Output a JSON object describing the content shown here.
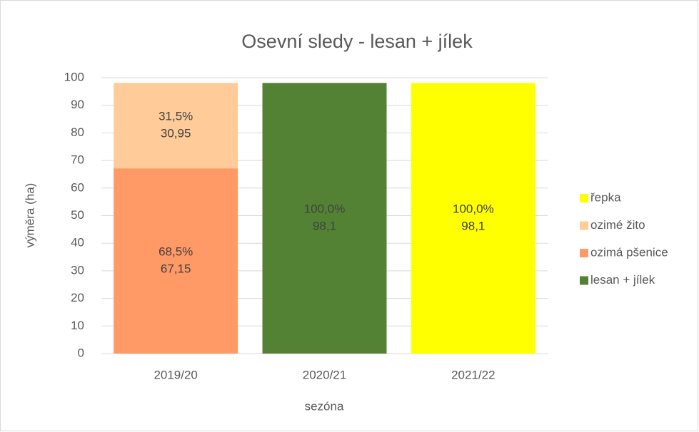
{
  "chart_data": {
    "type": "stacked_bar",
    "title": "Osevní sledy - lesan + jílek",
    "x_label": "sezóna",
    "y_label": "výměra (ha)",
    "categories": [
      "2019/20",
      "2020/21",
      "2021/22"
    ],
    "series": [
      {
        "name": "lesan + jílek",
        "color": "#548235",
        "values": [
          null,
          98.1,
          null
        ],
        "value_labels": [
          null,
          "98,1",
          null
        ],
        "share_labels": [
          null,
          "100,0%",
          null
        ]
      },
      {
        "name": "ozimá pšenice",
        "color": "#ff9966",
        "values": [
          67.15,
          null,
          null
        ],
        "value_labels": [
          "67,15",
          null,
          null
        ],
        "share_labels": [
          "68,5%",
          null,
          null
        ]
      },
      {
        "name": "ozimé žito",
        "color": "#ffcc99",
        "values": [
          30.95,
          null,
          null
        ],
        "value_labels": [
          "30,95",
          null,
          null
        ],
        "share_labels": [
          "31,5%",
          null,
          null
        ]
      },
      {
        "name": "řepka",
        "color": "#ffff00",
        "values": [
          null,
          null,
          98.1
        ],
        "value_labels": [
          null,
          null,
          "98,1"
        ],
        "share_labels": [
          null,
          null,
          "100,0%"
        ]
      }
    ],
    "ylim": [
      0,
      100
    ],
    "yticks": [
      0,
      10,
      20,
      30,
      40,
      50,
      60,
      70,
      80,
      90,
      100
    ],
    "grid": true,
    "legend": "right"
  }
}
